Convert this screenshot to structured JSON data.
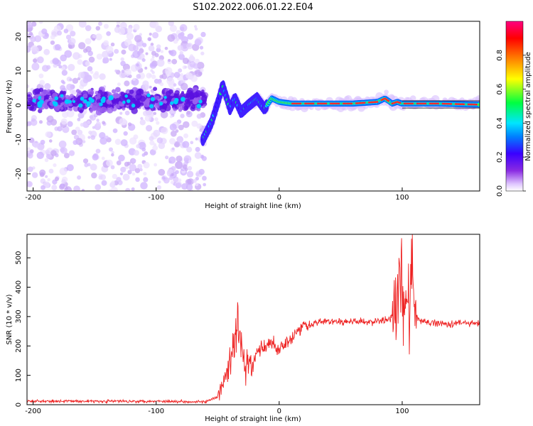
{
  "title": "S102.2022.006.01.22.E04",
  "colors": {
    "snr_line": "#ee2222",
    "frequency_trace": "#ff2a2a",
    "background": "#ffffff"
  },
  "chart_data": [
    {
      "type": "heatmap",
      "title": "S102.2022.006.01.22.E04",
      "xlabel": "Height of straight line (km)",
      "ylabel": "Frequency (Hz)",
      "xlim": [
        -205,
        163
      ],
      "ylim": [
        -25,
        24.5
      ],
      "x_ticks": [
        -200,
        -100,
        0,
        100
      ],
      "y_ticks": [
        -20,
        -10,
        0,
        10,
        20
      ],
      "grid": false,
      "colorbar": {
        "label": "Normalized spectral amplitude",
        "range": [
          0,
          1
        ],
        "ticks": [
          "0.0",
          "0.2",
          "0.4",
          "0.6",
          "0.8"
        ],
        "colormap": "rainbow (white-violet-blue-cyan-green-yellow-red-magenta)"
      },
      "ridge": {
        "x": [
          -62,
          -55,
          -48,
          -46,
          -40,
          -36,
          -31,
          -25,
          -18,
          -12,
          -6,
          0,
          10,
          30,
          60,
          80,
          86,
          92,
          96,
          100,
          110,
          130,
          150,
          163
        ],
        "y": [
          -10,
          -5,
          3,
          6,
          -1,
          2,
          -2,
          0,
          2,
          -1,
          2,
          1,
          0.5,
          0.5,
          0.5,
          1,
          2,
          0.5,
          1,
          0.5,
          0.5,
          0.5,
          0.3,
          0.2
        ]
      },
      "noise_region_x": [
        -205,
        -60
      ]
    },
    {
      "type": "line",
      "xlabel": "Height of straight line (km)",
      "ylabel": "SNR (10 * v/v)",
      "xlim": [
        -205,
        163
      ],
      "ylim": [
        0,
        580
      ],
      "x_ticks": [
        -200,
        -100,
        0,
        100
      ],
      "y_ticks": [
        0,
        100,
        200,
        300,
        400,
        500
      ],
      "grid": false,
      "series": [
        {
          "x": [
            -205,
            -150,
            -100,
            -60,
            -50,
            -45,
            -42,
            -38,
            -35,
            -33,
            -30,
            -28,
            -25,
            -22,
            -20,
            -18,
            -15,
            -10,
            -5,
            0,
            5,
            10,
            15,
            20,
            25,
            30,
            40,
            50,
            60,
            70,
            80,
            90,
            95,
            98,
            100,
            102,
            104,
            106,
            108,
            110,
            115,
            120,
            130,
            140,
            150,
            163
          ],
          "y": [
            12,
            12,
            12,
            10,
            25,
            80,
            120,
            170,
            230,
            280,
            180,
            120,
            150,
            120,
            150,
            180,
            190,
            200,
            210,
            190,
            210,
            230,
            250,
            270,
            275,
            280,
            285,
            280,
            285,
            280,
            285,
            290,
            320,
            420,
            430,
            320,
            470,
            280,
            570,
            300,
            285,
            280,
            278,
            275,
            280,
            275
          ]
        }
      ]
    }
  ]
}
